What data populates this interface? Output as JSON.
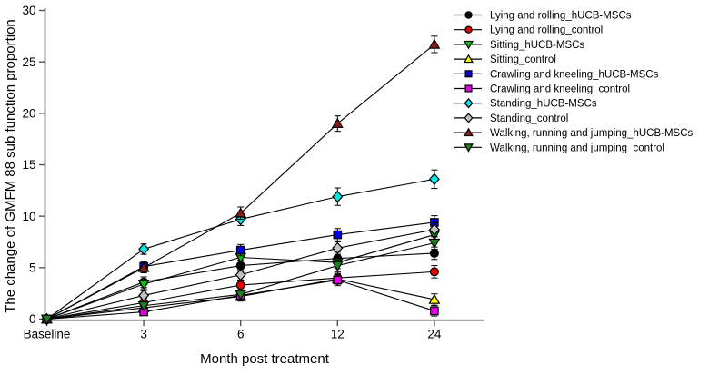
{
  "figure": {
    "title": "",
    "x_axis_title": "Month post treatment",
    "y_axis_title": "The change of GMFM 88 sub function proportion"
  },
  "chart_data": {
    "type": "line",
    "categories": [
      "Baseline",
      "3",
      "6",
      "12",
      "24"
    ],
    "xlabel": "Month post treatment",
    "ylabel": "The change of GMFM 88 sub function proportion",
    "ylim": [
      0,
      30
    ],
    "yticks": [
      0,
      5,
      10,
      15,
      20,
      25,
      30
    ],
    "grid": false,
    "legend_position": "outside-top-right",
    "line_color": "#000000",
    "axis_color": "#555555",
    "series": [
      {
        "name": "Lying and rolling_hUCB-MSCs",
        "marker": "circle",
        "color": "#000000",
        "values": [
          0,
          3.6,
          5.2,
          5.9,
          6.4
        ],
        "errors": [
          0.15,
          0.5,
          0.55,
          0.6,
          0.6
        ]
      },
      {
        "name": "Lying and rolling_control",
        "marker": "circle",
        "color": "#E80000",
        "values": [
          0,
          1.6,
          3.3,
          4.0,
          4.6
        ],
        "errors": [
          0.15,
          0.4,
          0.5,
          0.55,
          0.6
        ]
      },
      {
        "name": "Sitting_hUCB-MSCs",
        "marker": "triangle-down",
        "color": "#00C800",
        "values": [
          0,
          3.4,
          6.0,
          5.5,
          8.2
        ],
        "errors": [
          0.15,
          0.45,
          0.55,
          0.6,
          0.6
        ]
      },
      {
        "name": "Sitting_control",
        "marker": "triangle-up",
        "color": "#FFFF00",
        "values": [
          0,
          1.1,
          2.2,
          3.9,
          1.9
        ],
        "errors": [
          0.15,
          0.4,
          0.45,
          0.5,
          0.55
        ]
      },
      {
        "name": "Crawling and kneeling_hUCB-MSCs",
        "marker": "square",
        "color": "#0000E0",
        "values": [
          0,
          5.1,
          6.7,
          8.2,
          9.4
        ],
        "errors": [
          0.15,
          0.5,
          0.55,
          0.6,
          0.65
        ]
      },
      {
        "name": "Crawling and kneeling_control",
        "marker": "square",
        "color": "#E600E6",
        "values": [
          0,
          0.7,
          2.3,
          3.8,
          0.8
        ],
        "errors": [
          0.15,
          0.35,
          0.45,
          0.55,
          0.5
        ]
      },
      {
        "name": "Standing_hUCB-MSCs",
        "marker": "diamond",
        "color": "#00E6E6",
        "values": [
          0,
          6.8,
          9.7,
          11.9,
          13.6
        ],
        "errors": [
          0.15,
          0.5,
          0.6,
          0.85,
          0.9
        ]
      },
      {
        "name": "Standing_control",
        "marker": "diamond",
        "color": "#C0C0C0",
        "values": [
          0,
          2.3,
          4.3,
          6.9,
          8.7
        ],
        "errors": [
          0.15,
          0.45,
          0.5,
          0.6,
          0.65
        ]
      },
      {
        "name": "Walking, running and jumping_hUCB-MSCs",
        "marker": "triangle-up",
        "color": "#8B1A1A",
        "values": [
          0,
          5.0,
          10.3,
          19.0,
          26.7
        ],
        "errors": [
          0.15,
          0.5,
          0.6,
          0.75,
          0.8
        ]
      },
      {
        "name": "Walking, running and jumping_control",
        "marker": "triangle-down",
        "color": "#1E821E",
        "values": [
          0,
          1.3,
          2.4,
          5.2,
          7.4
        ],
        "errors": [
          0.15,
          0.4,
          0.45,
          0.55,
          0.6
        ]
      }
    ]
  }
}
